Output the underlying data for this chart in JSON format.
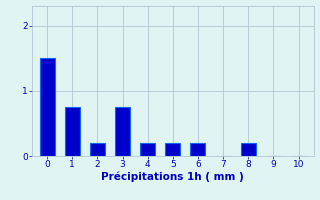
{
  "categories": [
    0,
    1,
    2,
    3,
    4,
    5,
    6,
    7,
    8,
    9,
    10
  ],
  "values": [
    1.5,
    0.75,
    0.2,
    0.75,
    0.2,
    0.2,
    0.2,
    0.0,
    0.2,
    0.0,
    0.0
  ],
  "bar_color": "#0000cc",
  "bar_edge_color": "#1166ee",
  "background_color": "#e0f4f4",
  "grid_color": "#aabbcc",
  "xlabel": "Précipitations 1h ( mm )",
  "xlabel_color": "#0000bb",
  "tick_color": "#0000bb",
  "yticks": [
    0,
    1,
    2
  ],
  "ylim": [
    0,
    2.3
  ],
  "xlim": [
    -0.6,
    10.6
  ],
  "bar_width": 0.6,
  "figsize": [
    3.2,
    2.0
  ],
  "dpi": 100
}
